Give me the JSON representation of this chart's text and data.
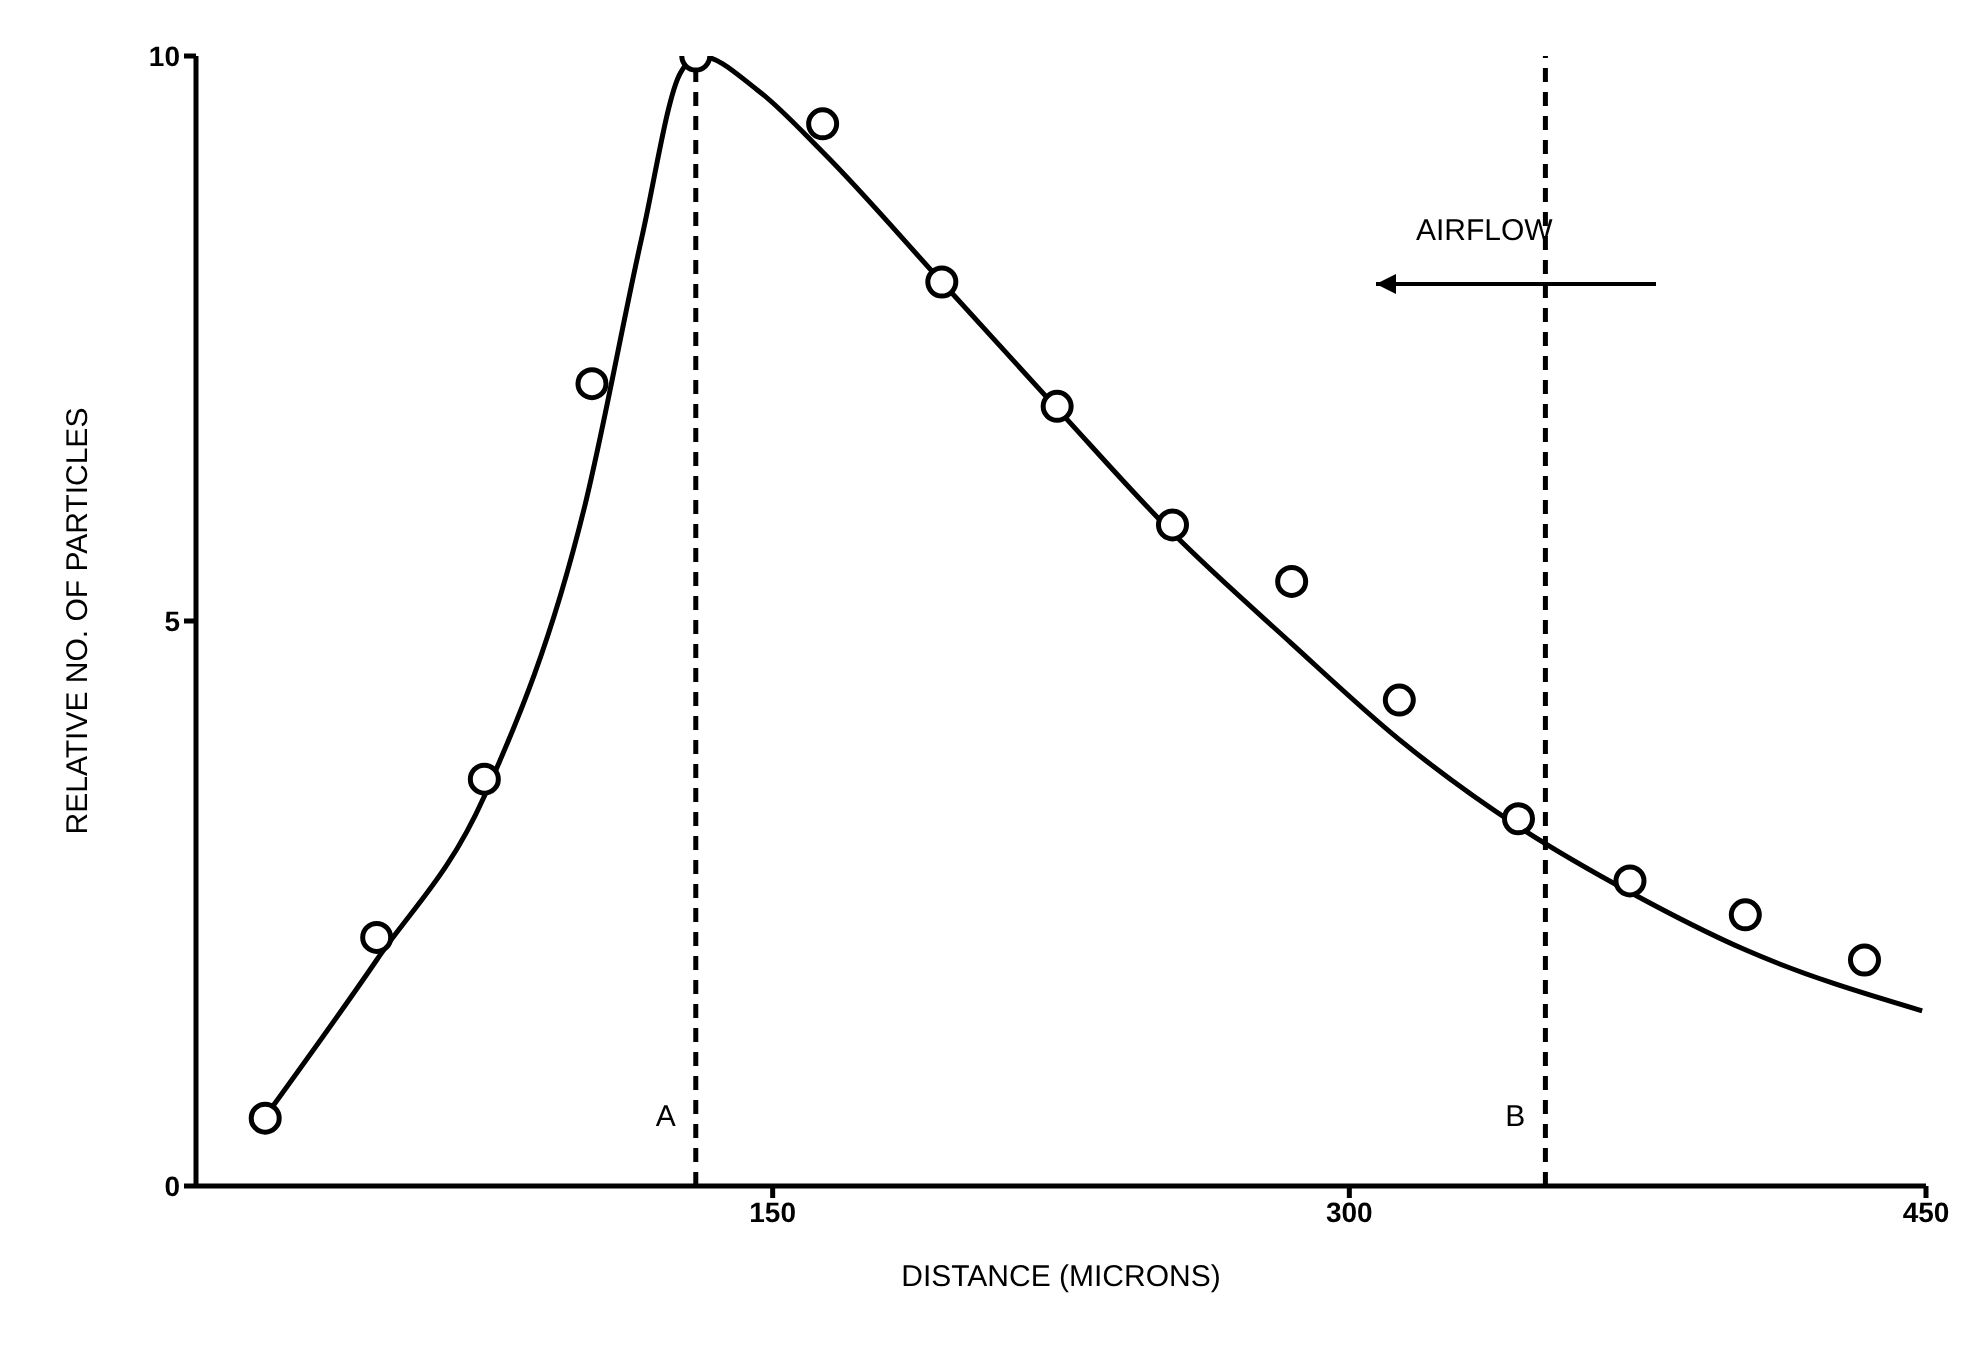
{
  "chart_data": {
    "type": "scatter",
    "xlabel": "DISTANCE  (MICRONS)",
    "ylabel": "RELATIVE NO. OF PARTICLES",
    "xlim": [
      0,
      450
    ],
    "xticks": [
      150,
      300,
      450
    ],
    "ylim": [
      0,
      10
    ],
    "yticks": [
      0,
      5,
      10
    ],
    "grid": false,
    "legend": false,
    "annotations": [
      "AIRFLOW"
    ],
    "ref_lines": [
      {
        "axis": "x",
        "value": 130,
        "label": "A",
        "line_style": "dashed",
        "color": "#000000"
      },
      {
        "axis": "x",
        "value": 351,
        "label": "B",
        "line_style": "dashed",
        "color": "#000000"
      }
    ],
    "series": [
      {
        "color": "#000000",
        "marker": "circle",
        "x": [
          18,
          47,
          75,
          103,
          130,
          163,
          194,
          224,
          254,
          285,
          313,
          344,
          373,
          403,
          434
        ],
        "values": [
          0.6,
          2.2,
          3.6,
          7.1,
          10.0,
          9.4,
          8.0,
          6.9,
          5.85,
          5.35,
          4.3,
          3.25,
          2.7,
          2.4,
          2.0
        ]
      },
      {
        "type": "line",
        "color": "#000000",
        "marker": "none",
        "line_style": "solid",
        "x": [
          19,
          47,
          75,
          101,
          116,
          126,
          131,
          146,
          163,
          194,
          224,
          254,
          285,
          313,
          344,
          373,
          403,
          449
        ],
        "values": [
          0.66,
          2.0,
          3.45,
          6.0,
          8.4,
          9.85,
          10.0,
          9.7,
          9.15,
          8.0,
          6.88,
          5.78,
          4.8,
          3.95,
          3.18,
          2.6,
          2.09,
          1.55
        ]
      }
    ]
  }
}
